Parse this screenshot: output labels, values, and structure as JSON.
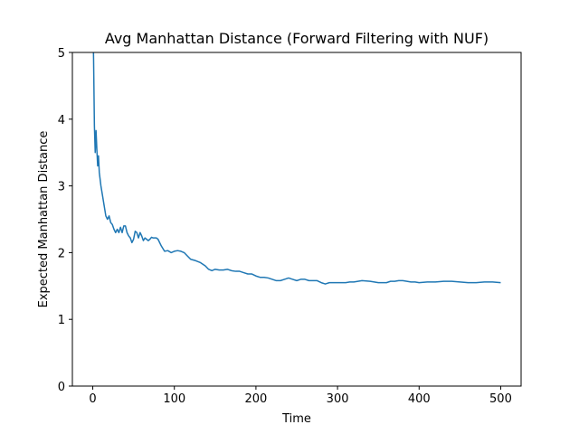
{
  "chart_data": {
    "type": "line",
    "title": "Avg Manhattan Distance (Forward Filtering with NUF)",
    "xlabel": "Time",
    "ylabel": "Expected Manhattan Distance",
    "xlim": [
      -25,
      525
    ],
    "ylim": [
      0,
      5
    ],
    "xticks": [
      0,
      100,
      200,
      300,
      400,
      500
    ],
    "yticks": [
      0,
      1,
      2,
      3,
      4,
      5
    ],
    "grid": false,
    "color": "#1f77b4",
    "series": [
      {
        "x": [
          0,
          1,
          2,
          3,
          4,
          5,
          6,
          7,
          8,
          10,
          12,
          14,
          16,
          18,
          20,
          22,
          24,
          26,
          28,
          30,
          32,
          34,
          36,
          38,
          40,
          42,
          44,
          46,
          48,
          50,
          52,
          54,
          56,
          58,
          60,
          62,
          64,
          66,
          68,
          70,
          72,
          74,
          76,
          78,
          80,
          84,
          88,
          92,
          96,
          100,
          104,
          108,
          112,
          116,
          120,
          126,
          132,
          138,
          142,
          146,
          150,
          155,
          160,
          165,
          170,
          175,
          180,
          185,
          190,
          195,
          200,
          205,
          210,
          215,
          220,
          225,
          230,
          235,
          240,
          245,
          250,
          255,
          260,
          265,
          270,
          275,
          280,
          285,
          290,
          295,
          300,
          305,
          310,
          315,
          320,
          330,
          340,
          350,
          360,
          365,
          370,
          375,
          380,
          385,
          390,
          395,
          400,
          410,
          420,
          430,
          440,
          450,
          460,
          470,
          480,
          490,
          500
        ],
        "values": [
          5.6,
          4.9,
          3.9,
          3.5,
          3.83,
          3.55,
          3.3,
          3.45,
          3.2,
          3.0,
          2.85,
          2.7,
          2.55,
          2.5,
          2.55,
          2.45,
          2.42,
          2.35,
          2.3,
          2.35,
          2.3,
          2.38,
          2.3,
          2.4,
          2.4,
          2.3,
          2.25,
          2.22,
          2.15,
          2.2,
          2.32,
          2.3,
          2.22,
          2.3,
          2.25,
          2.18,
          2.22,
          2.2,
          2.18,
          2.2,
          2.23,
          2.22,
          2.22,
          2.22,
          2.2,
          2.1,
          2.02,
          2.03,
          2.0,
          2.02,
          2.03,
          2.02,
          2.0,
          1.95,
          1.9,
          1.88,
          1.85,
          1.8,
          1.75,
          1.73,
          1.75,
          1.74,
          1.74,
          1.75,
          1.73,
          1.72,
          1.72,
          1.7,
          1.68,
          1.68,
          1.65,
          1.63,
          1.63,
          1.62,
          1.6,
          1.58,
          1.58,
          1.6,
          1.62,
          1.6,
          1.58,
          1.6,
          1.6,
          1.58,
          1.58,
          1.58,
          1.55,
          1.53,
          1.55,
          1.55,
          1.55,
          1.55,
          1.55,
          1.56,
          1.56,
          1.58,
          1.57,
          1.55,
          1.55,
          1.57,
          1.57,
          1.58,
          1.58,
          1.57,
          1.56,
          1.56,
          1.55,
          1.56,
          1.56,
          1.57,
          1.57,
          1.56,
          1.55,
          1.55,
          1.56,
          1.56,
          1.55
        ]
      }
    ]
  }
}
